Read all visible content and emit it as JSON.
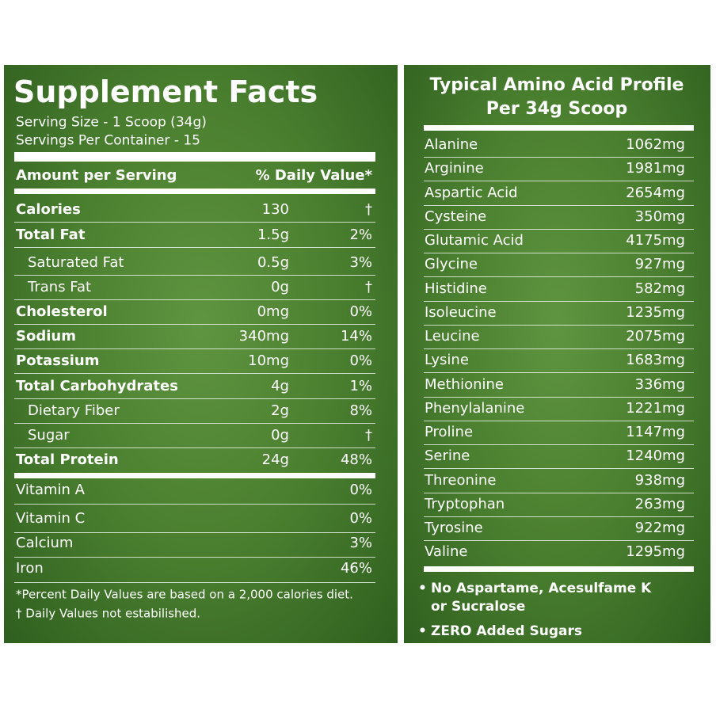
{
  "left": {
    "title": "Supplement Facts",
    "serving_size": "Serving  Size - 1 Scoop (34g)",
    "servings": "Servings Per Container - 15",
    "header": [
      "Amount per Serving",
      "% Daily Value*"
    ],
    "rows": [
      [
        "Calories",
        "130",
        "†"
      ],
      [
        "Total Fat",
        "1.5g",
        "2%"
      ],
      [
        "Saturated Fat",
        "0.5g",
        "3%"
      ],
      [
        "Trans Fat",
        "0g",
        "†"
      ],
      [
        "Cholesterol",
        "0mg",
        "0%"
      ],
      [
        "Sodium",
        "340mg",
        "14%"
      ],
      [
        "Potassium",
        "10mg",
        "0%"
      ],
      [
        "Total Carbohydrates",
        "4g",
        "1%"
      ],
      [
        "Dietary Fiber",
        "2g",
        "8%"
      ],
      [
        "Sugar",
        "0g",
        "†"
      ],
      [
        "Total Protein",
        "24g",
        "48%"
      ]
    ],
    "vitamins": [
      [
        "Vitamin A",
        "0%"
      ],
      [
        "Vitamin C",
        "0%"
      ],
      [
        "Calcium",
        "3%"
      ],
      [
        "Iron",
        "46%"
      ]
    ],
    "footnotes": [
      "*Percent Daily Values are based on a 2,000 calories diet.",
      "† Daily Values not estabilished."
    ]
  },
  "right": {
    "title": [
      "Typical Amino Acid Profile",
      "Per 34g Scoop"
    ],
    "rows": [
      [
        "Alanine",
        "1062mg"
      ],
      [
        "Arginine",
        "1981mg"
      ],
      [
        "Aspartic Acid",
        "2654mg"
      ],
      [
        "Cysteine",
        "350mg"
      ],
      [
        "Glutamic Acid",
        "4175mg"
      ],
      [
        "Glycine",
        "927mg"
      ],
      [
        "Histidine",
        "582mg"
      ],
      [
        "Isoleucine",
        "1235mg"
      ],
      [
        "Leucine",
        "2075mg"
      ],
      [
        "Lysine",
        "1683mg"
      ],
      [
        "Methionine",
        "336mg"
      ],
      [
        "Phenylalanine",
        "1221mg"
      ],
      [
        "Proline",
        "1147mg"
      ],
      [
        "Serine",
        "1240mg"
      ],
      [
        "Threonine",
        "938mg"
      ],
      [
        "Tryptophan",
        "263mg"
      ],
      [
        "Tyrosine",
        "922mg"
      ],
      [
        "Valine",
        "1295mg"
      ]
    ],
    "bullets": [
      "No Aspartame, Acesulfame K or Sucralose",
      "ZERO Added Sugars"
    ]
  }
}
